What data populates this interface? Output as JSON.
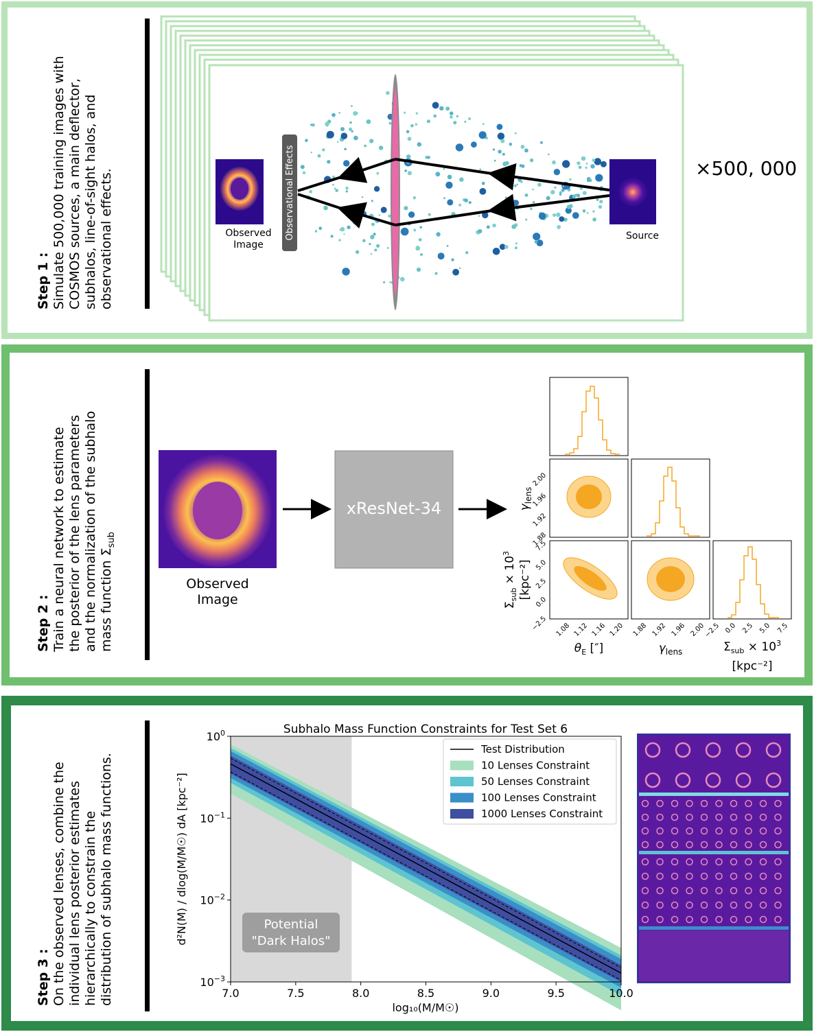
{
  "step1": {
    "label": "Step 1 :",
    "lines": [
      "Simulate 500,000 training images with",
      "COSMOS sources, a main deflector,",
      "subhalos, line-of-sight halos, and",
      "observational effects."
    ],
    "observed_label": "Observed",
    "observed_label2": "Image",
    "effects_label": "Observational Effects",
    "source_label": "Source",
    "multiplier": "×500, 000"
  },
  "step2": {
    "label": "Step 2 :",
    "lines": [
      "Train a neural network to estimate",
      "the posterior of the lens parameters",
      "and the normalization of the subhalo",
      "mass function Σ"
    ],
    "sub": "sub",
    "observed_label": "Observed",
    "observed_label2": "Image",
    "network": "xResNet-34",
    "corner": {
      "theta_ticks": [
        "1.08",
        "1.12",
        "1.16",
        "1.20"
      ],
      "gamma_ticks": [
        "1.88",
        "1.92",
        "1.96",
        "2.00"
      ],
      "sigma_ticks": [
        "−2.5",
        "0.0",
        "2.5",
        "5.0",
        "7.5"
      ],
      "xlabel_theta": "θ",
      "xlabel_theta_sub": "E",
      "xlabel_theta_unit": " [″]",
      "xlabel_gamma": "γ",
      "xlabel_gamma_sub": "lens",
      "xlabel_sigma": "Σ",
      "xlabel_sigma_sub": "sub",
      "xlabel_sigma_rest": " × 10",
      "xlabel_sigma_exp": "3",
      "xlabel_sigma_unit": "[kpc⁻²]"
    }
  },
  "step3": {
    "label": "Step 3 :",
    "lines": [
      "On the observed lenses, combine the",
      "individual lens posterior estimates",
      "hierarchically to constrain the",
      "distribution of subhalo mass functions."
    ],
    "potential_line1": "Potential",
    "potential_line2": "\"Dark Halos\"",
    "colors": {
      "c10": "#a8dfbf",
      "c50": "#5ec4cf",
      "c100": "#3a8fc8",
      "c1000": "#3f4ea0",
      "shade": "#d9d9d9"
    }
  },
  "chart_data": {
    "type": "line",
    "title": "Subhalo Mass Function Constraints for Test Set 6",
    "xlabel": "log₁₀(M/M☉)",
    "ylabel": "d²N(M) / dlog(M/M☉) dA  [kpc⁻²]",
    "xlim": [
      7.0,
      10.0
    ],
    "ylim": [
      0.001,
      1.0
    ],
    "yscale": "log",
    "x_ticks": [
      "7.0",
      "7.5",
      "8.0",
      "8.5",
      "9.0",
      "9.5",
      "10.0"
    ],
    "y_ticks": [
      {
        "base": "10",
        "exp": "0"
      },
      {
        "base": "10",
        "exp": "−1"
      },
      {
        "base": "10",
        "exp": "−2"
      },
      {
        "base": "10",
        "exp": "−3"
      }
    ],
    "shaded_region": [
      7.0,
      7.93
    ],
    "legend_position": "top-right",
    "series": [
      {
        "name": "Test Distribution",
        "x": [
          7.0,
          10.0
        ],
        "y": [
          0.46,
          0.00128
        ]
      },
      {
        "name": "10 Lenses Constraint",
        "x": [
          7.0,
          10.0
        ],
        "y_low": [
          0.2,
          0.00045
        ],
        "y_high": [
          0.8,
          0.0026
        ]
      },
      {
        "name": "50 Lenses Constraint",
        "x": [
          7.0,
          10.0
        ],
        "y_low": [
          0.27,
          0.00068
        ],
        "y_high": [
          0.72,
          0.0021
        ]
      },
      {
        "name": "100 Lenses Constraint",
        "x": [
          7.0,
          10.0
        ],
        "y_low": [
          0.31,
          0.00085
        ],
        "y_high": [
          0.66,
          0.0019
        ]
      },
      {
        "name": "1000 Lenses Constraint",
        "x": [
          7.0,
          10.0
        ],
        "y_low": [
          0.35,
          0.001
        ],
        "y_high": [
          0.58,
          0.0016
        ]
      }
    ]
  }
}
